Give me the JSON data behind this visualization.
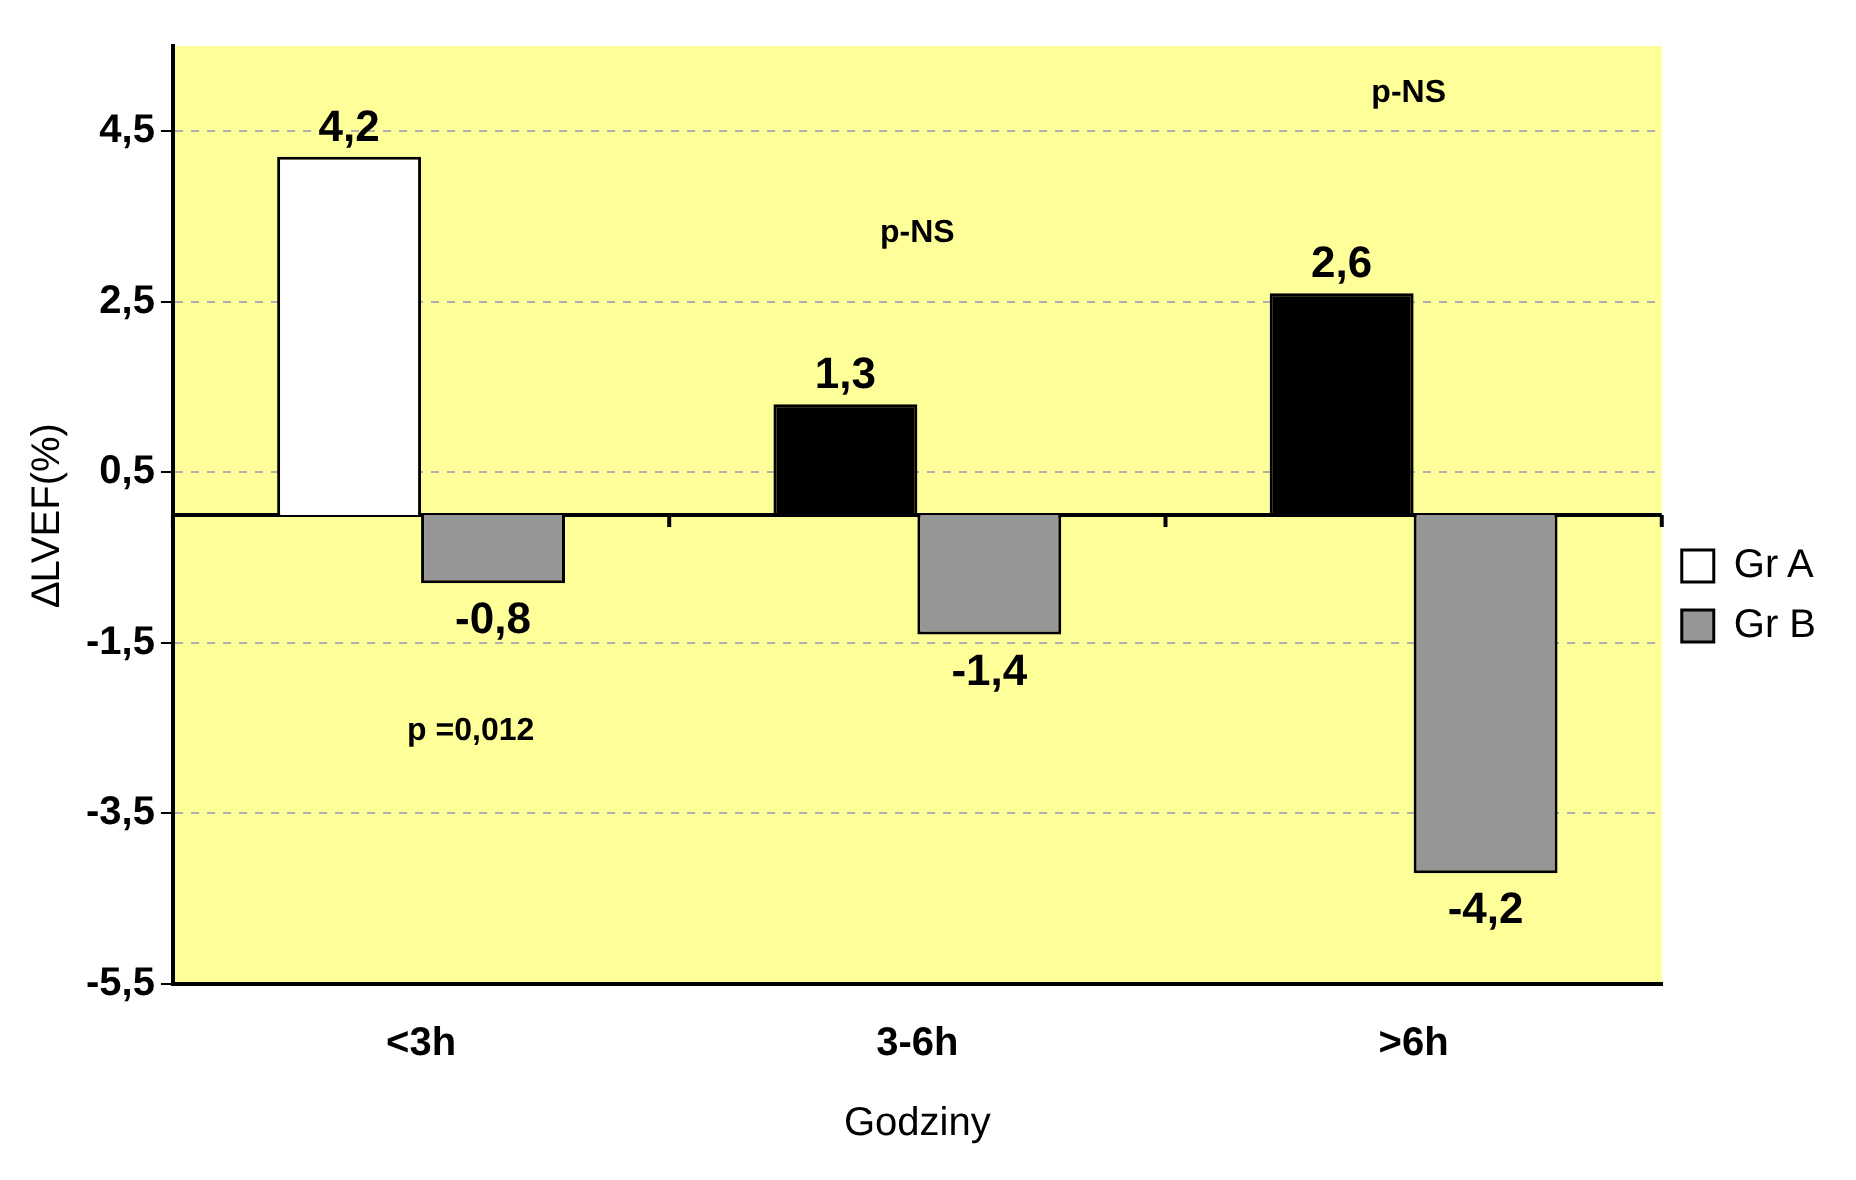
{
  "chart_data": {
    "type": "bar",
    "xlabel": "Godziny",
    "ylabel": "∆LVEF(%)",
    "categories": [
      "<3h",
      "3-6h",
      ">6h"
    ],
    "series": [
      {
        "name": "Gr A",
        "color": "#ffffff",
        "colors": [
          "#ffffff",
          "#000000",
          "#000000"
        ],
        "values": [
          4.2,
          1.3,
          2.6
        ],
        "value_labels": [
          "4,2",
          "1,3",
          "2,6"
        ]
      },
      {
        "name": "Gr B",
        "color": "#969696",
        "values": [
          -0.8,
          -1.4,
          -4.2
        ],
        "value_labels": [
          "-0,8",
          "-1,4",
          "-4,2"
        ]
      }
    ],
    "ylim": [
      -5.5,
      5.5
    ],
    "yticks": [
      {
        "value": 4.5,
        "label": "4,5"
      },
      {
        "value": 2.5,
        "label": "2,5"
      },
      {
        "value": 0.5,
        "label": "0,5"
      },
      {
        "value": -1.5,
        "label": "-1,5"
      },
      {
        "value": -3.5,
        "label": "-3,5"
      },
      {
        "value": -5.5,
        "label": "-5,5"
      }
    ],
    "grid": "y",
    "legend": "right",
    "annotations": [
      "p =0,012",
      "p-NS",
      "p-NS"
    ]
  }
}
